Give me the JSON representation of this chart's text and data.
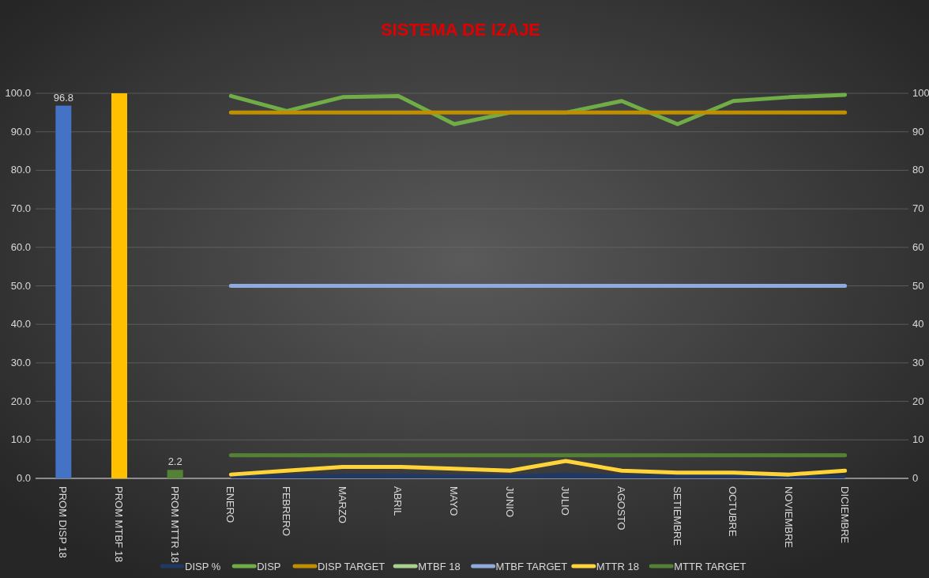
{
  "chart_data": {
    "type": "line",
    "title": "SISTEMA DE IZAJE",
    "categories": [
      "PROM DISP 18",
      "PROM MTBF 18",
      "PROM MTTR 18",
      "ENERO",
      "FEBRERO",
      "MARZO",
      "ABRIL",
      "MAYO",
      "JUNIO",
      "JULIO",
      "AGOSTO",
      "SETIEMBRE",
      "OCTUBRE",
      "NOVIEMBRE",
      "DICIEMBRE"
    ],
    "series": [
      {
        "type": "bar",
        "colors": [
          "#4472c4",
          "#ffc000",
          "#548235",
          null,
          null,
          null,
          null,
          null,
          null,
          null,
          null,
          null,
          null,
          null,
          null
        ],
        "values": [
          96.8,
          100,
          2.2,
          null,
          null,
          null,
          null,
          null,
          null,
          null,
          null,
          null,
          null,
          null,
          null
        ],
        "value_labels": [
          "96.8",
          null,
          "2.2",
          null,
          null,
          null,
          null,
          null,
          null,
          null,
          null,
          null,
          null,
          null,
          null
        ]
      },
      {
        "type": "area",
        "name": "DISP %",
        "color": "#203864",
        "values": [
          null,
          null,
          null,
          0.8,
          1,
          1.2,
          1.2,
          1,
          1,
          1.5,
          1,
          0.8,
          0.8,
          0.6,
          0.8
        ]
      },
      {
        "name": "DISP",
        "color": "#70ad47",
        "values": [
          null,
          null,
          null,
          99.3,
          95.4,
          99,
          99.3,
          92,
          95,
          95,
          98,
          92,
          98,
          99,
          99.6
        ]
      },
      {
        "name": "DISP TARGET",
        "color": "#bf8f00",
        "values": [
          null,
          null,
          null,
          95,
          95,
          95,
          95,
          95,
          95,
          95,
          95,
          95,
          95,
          95,
          95
        ]
      },
      {
        "name": "MTBF 18",
        "color": "#a9d18e",
        "values": [
          null,
          null,
          null,
          null,
          null,
          null,
          null,
          null,
          null,
          null,
          null,
          null,
          null,
          null,
          null
        ]
      },
      {
        "name": "MTBF TARGET",
        "color": "#8faadc",
        "values": [
          null,
          null,
          null,
          50,
          50,
          50,
          50,
          50,
          50,
          50,
          50,
          50,
          50,
          50,
          50
        ]
      },
      {
        "name": "MTTR 18",
        "color": "#ffd439",
        "values": [
          null,
          null,
          null,
          1,
          2,
          3,
          3,
          2.5,
          2,
          4.5,
          2,
          1.5,
          1.5,
          1,
          2
        ]
      },
      {
        "name": "MTTR TARGET",
        "color": "#548235",
        "values": [
          null,
          null,
          null,
          6,
          6,
          6,
          6,
          6,
          6,
          6,
          6,
          6,
          6,
          6,
          6
        ]
      }
    ],
    "ylim": [
      0,
      100
    ],
    "yticks": [
      {
        "value": 0,
        "label": "0.0"
      },
      {
        "value": 10,
        "label": "10.0"
      },
      {
        "value": 20,
        "label": "20.0"
      },
      {
        "value": 30,
        "label": "30.0"
      },
      {
        "value": 40,
        "label": "40.0"
      },
      {
        "value": 50,
        "label": "50.0"
      },
      {
        "value": 60,
        "label": "60.0"
      },
      {
        "value": 70,
        "label": "70.0"
      },
      {
        "value": 80,
        "label": "80.0"
      },
      {
        "value": 90,
        "label": "90.0"
      },
      {
        "value": 100,
        "label": "100.0"
      }
    ],
    "y2lim": [
      0,
      100
    ],
    "y2ticks": [
      0,
      10,
      20,
      30,
      40,
      50,
      60,
      70,
      80,
      90,
      100
    ],
    "grid": "y",
    "legend": "bottom",
    "line_style": "solid"
  }
}
